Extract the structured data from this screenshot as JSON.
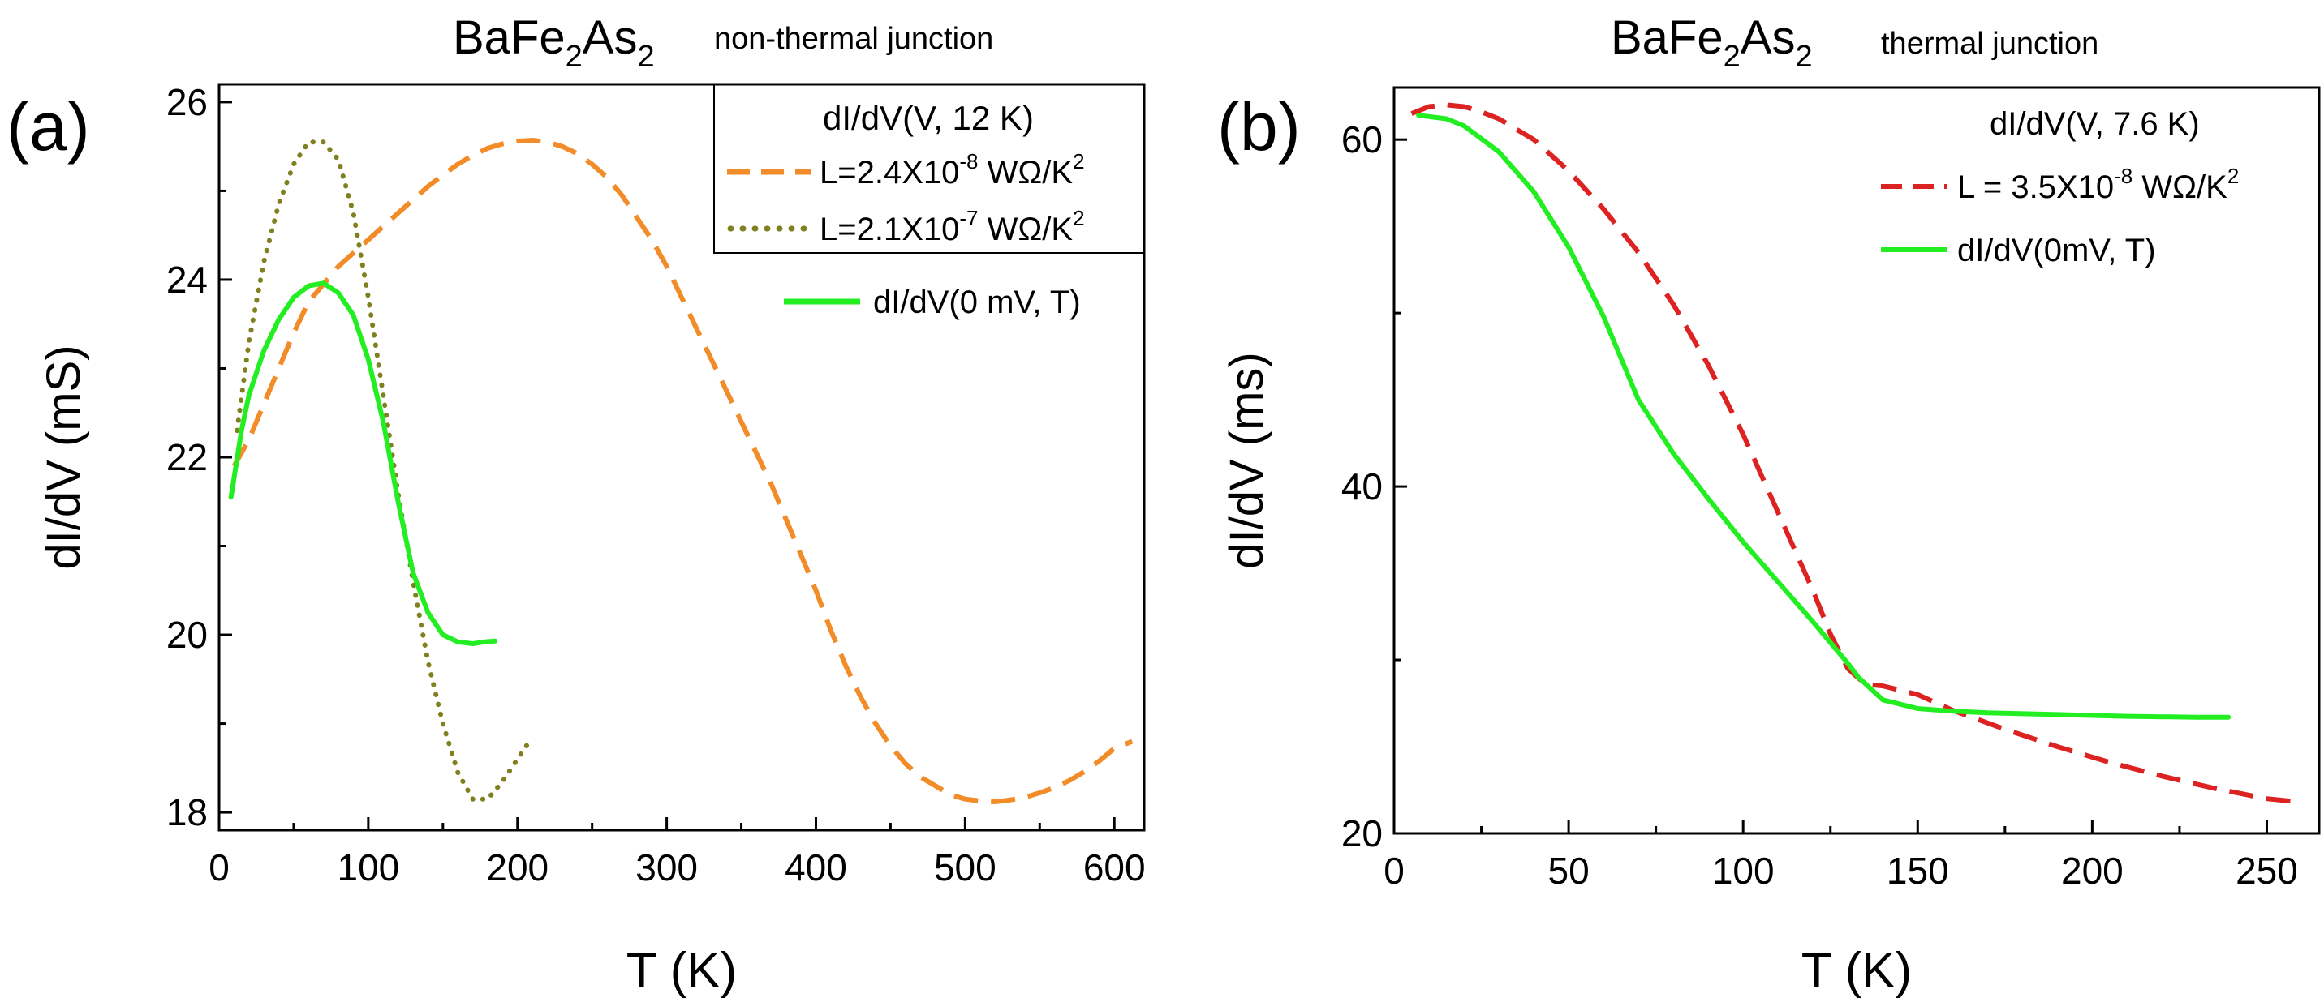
{
  "chart_data": [
    {
      "panel": "(a)",
      "type": "line",
      "title": {
        "main": "BaFe",
        "sub1": "2",
        "mid": "As",
        "sub2": "2",
        "note": "non-thermal junction"
      },
      "xlabel": "T (K)",
      "ylabel": "dI/dV (mS)",
      "xlim": [
        0,
        620
      ],
      "ylim": [
        17.8,
        26.2
      ],
      "xticks": [
        0,
        100,
        200,
        300,
        400,
        500,
        600
      ],
      "yticks": [
        18,
        20,
        22,
        24,
        26
      ],
      "legend": {
        "placement": "top-right",
        "header": "dI/dV(V, 12 K)",
        "entries": [
          {
            "series": 0,
            "text": "L=2.4X10",
            "exp": "-8",
            "unit": " WΩ/K",
            "unitexp": "2"
          },
          {
            "series": 1,
            "text": "L=2.1X10",
            "exp": "-7",
            "unit": " WΩ/K",
            "unitexp": "2"
          }
        ],
        "outside": {
          "series": 2,
          "text": "dI/dV(0 mV, T)"
        }
      },
      "series": [
        {
          "name": "L=2.4X10^-8 WΩ/K^2",
          "color": "#f28c28",
          "style": "dashed",
          "x": [
            10,
            20,
            30,
            40,
            50,
            60,
            70,
            80,
            90,
            100,
            110,
            120,
            130,
            140,
            150,
            160,
            170,
            180,
            190,
            200,
            210,
            220,
            230,
            240,
            250,
            260,
            270,
            280,
            290,
            300,
            310,
            320,
            330,
            340,
            350,
            360,
            370,
            380,
            390,
            400,
            410,
            420,
            430,
            440,
            450,
            460,
            470,
            480,
            490,
            500,
            510,
            520,
            530,
            540,
            550,
            560,
            570,
            580,
            590,
            600,
            612
          ],
          "y": [
            21.9,
            22.2,
            22.6,
            23.0,
            23.4,
            23.75,
            23.95,
            24.15,
            24.3,
            24.45,
            24.6,
            24.75,
            24.9,
            25.05,
            25.18,
            25.3,
            25.4,
            25.48,
            25.53,
            25.56,
            25.57,
            25.55,
            25.5,
            25.42,
            25.3,
            25.15,
            24.95,
            24.7,
            24.45,
            24.15,
            23.8,
            23.45,
            23.1,
            22.75,
            22.4,
            22.05,
            21.7,
            21.3,
            20.9,
            20.5,
            20.05,
            19.65,
            19.3,
            19.0,
            18.75,
            18.55,
            18.4,
            18.3,
            18.2,
            18.15,
            18.13,
            18.12,
            18.14,
            18.17,
            18.22,
            18.28,
            18.36,
            18.46,
            18.58,
            18.72,
            18.8
          ]
        },
        {
          "name": "L=2.1X10^-7 WΩ/K^2",
          "color": "#808020",
          "style": "dotted",
          "x": [
            12,
            20,
            30,
            40,
            50,
            60,
            70,
            80,
            90,
            100,
            110,
            120,
            130,
            140,
            150,
            160,
            170,
            180,
            190,
            200,
            208
          ],
          "y": [
            22.3,
            23.3,
            24.2,
            24.85,
            25.3,
            25.55,
            25.55,
            25.35,
            24.75,
            23.8,
            22.7,
            21.6,
            20.6,
            19.7,
            19.0,
            18.45,
            18.15,
            18.15,
            18.35,
            18.6,
            18.8
          ]
        },
        {
          "name": "dI/dV(0 mV, T)",
          "color": "#22ee22",
          "style": "solid",
          "x": [
            8,
            15,
            20,
            30,
            40,
            50,
            60,
            70,
            80,
            90,
            100,
            110,
            120,
            130,
            140,
            150,
            160,
            170,
            178,
            185
          ],
          "y": [
            21.55,
            22.3,
            22.7,
            23.2,
            23.55,
            23.8,
            23.93,
            23.96,
            23.85,
            23.6,
            23.1,
            22.4,
            21.5,
            20.7,
            20.25,
            20.0,
            19.92,
            19.9,
            19.92,
            19.93
          ]
        }
      ]
    },
    {
      "panel": "(b)",
      "type": "line",
      "title": {
        "main": "BaFe",
        "sub1": "2",
        "mid": "As",
        "sub2": "2",
        "note": "thermal junction"
      },
      "xlabel": "T (K)",
      "ylabel": "dI/dV (ms)",
      "xlim": [
        0,
        265
      ],
      "ylim": [
        20,
        63
      ],
      "xticks": [
        0,
        50,
        100,
        150,
        200,
        250
      ],
      "yticks": [
        20,
        40,
        60
      ],
      "legend": {
        "placement": "top-right",
        "header": "dI/dV(V, 7.6 K)",
        "entries": [
          {
            "series": 0,
            "text": "L = 3.5X10",
            "exp": "-8",
            "unit": " WΩ/K",
            "unitexp": "2"
          },
          {
            "series": 1,
            "text": "dI/dV(0mV, T)"
          }
        ]
      },
      "series": [
        {
          "name": "L = 3.5X10^-8 WΩ/K^2",
          "color": "#dd2222",
          "style": "dashed",
          "x": [
            5,
            10,
            15,
            20,
            25,
            30,
            40,
            50,
            60,
            70,
            80,
            90,
            100,
            110,
            120,
            125,
            130,
            135,
            140,
            150,
            160,
            175,
            190,
            205,
            220,
            235,
            250,
            260
          ],
          "y": [
            61.5,
            61.9,
            62.0,
            61.9,
            61.6,
            61.2,
            60.0,
            58.2,
            56.0,
            53.5,
            50.5,
            47.0,
            43.0,
            38.5,
            34.0,
            31.5,
            29.5,
            28.6,
            28.5,
            28.0,
            27.1,
            26.0,
            25.0,
            24.1,
            23.3,
            22.6,
            22.0,
            21.8
          ]
        },
        {
          "name": "dI/dV(0mV, T)",
          "color": "#22ee22",
          "style": "solid",
          "x": [
            7,
            15,
            20,
            30,
            40,
            50,
            60,
            70,
            80,
            90,
            100,
            110,
            120,
            130,
            133,
            140,
            150,
            160,
            170,
            190,
            210,
            230,
            239
          ],
          "y": [
            61.4,
            61.2,
            60.8,
            59.3,
            57.0,
            53.8,
            49.8,
            45.0,
            41.9,
            39.3,
            36.8,
            34.5,
            32.2,
            29.8,
            29.0,
            27.7,
            27.2,
            27.05,
            26.95,
            26.85,
            26.75,
            26.7,
            26.7
          ]
        }
      ]
    }
  ]
}
